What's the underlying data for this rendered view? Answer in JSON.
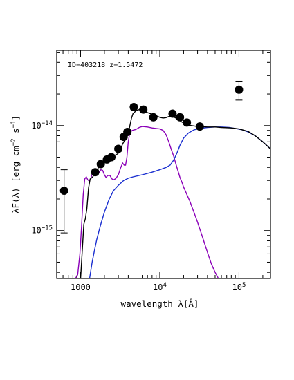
{
  "chart_data": {
    "type": "scatter",
    "annotation": "ID=403218 z=1.5472",
    "xlabel": "wavelength λ[Å]",
    "ylabel": {
      "prefix": "λF(λ) [erg cm",
      "exp1": "−2",
      "mid": " s",
      "exp2": "−1",
      "suffix": "]"
    },
    "x_scale": "log",
    "y_scale": "log",
    "xlim": [
      500,
      250000
    ],
    "ylim": [
      3.5e-16,
      5.2e-14
    ],
    "x_ticks": [
      {
        "value": 1000,
        "base": "1000",
        "exp": ""
      },
      {
        "value": 10000,
        "base": "10",
        "exp": "4"
      },
      {
        "value": 100000,
        "base": "10",
        "exp": "5"
      }
    ],
    "y_ticks": [
      {
        "value": 1e-15,
        "base": "10",
        "exp": "−15"
      },
      {
        "value": 1e-14,
        "base": "10",
        "exp": "−14"
      }
    ],
    "legend": "none",
    "grid": false,
    "colors": {
      "points": "#000000",
      "total": "#000000",
      "stellar": "#8b00b8",
      "dust": "#1a2fd0"
    },
    "points": [
      {
        "x": 620,
        "y": 2.4e-15,
        "ylo": 9.5e-16,
        "yhi": 3.8e-15
      },
      {
        "x": 1530,
        "y": 3.6e-15,
        "ylo": 3.42e-15,
        "yhi": 3.78e-15
      },
      {
        "x": 1800,
        "y": 4.3e-15,
        "ylo": 4.09e-15,
        "yhi": 4.52e-15
      },
      {
        "x": 2150,
        "y": 4.75e-15,
        "ylo": 4.5e-15,
        "yhi": 5e-15
      },
      {
        "x": 2450,
        "y": 5e-15,
        "ylo": 4.75e-15,
        "yhi": 5.25e-15
      },
      {
        "x": 3000,
        "y": 6e-15,
        "ylo": 5.7e-15,
        "yhi": 6.3e-15
      },
      {
        "x": 3500,
        "y": 7.8e-15,
        "ylo": 7.4e-15,
        "yhi": 8.2e-15
      },
      {
        "x": 3900,
        "y": 8.7e-15,
        "ylo": 8.26e-15,
        "yhi": 9.14e-15
      },
      {
        "x": 4700,
        "y": 1.5e-14,
        "ylo": 1.42e-14,
        "yhi": 1.58e-14
      },
      {
        "x": 6200,
        "y": 1.42e-14,
        "ylo": 1.35e-14,
        "yhi": 1.49e-14
      },
      {
        "x": 8300,
        "y": 1.2e-14,
        "ylo": 1.14e-14,
        "yhi": 1.26e-14
      },
      {
        "x": 14500,
        "y": 1.3e-14,
        "ylo": 1.23e-14,
        "yhi": 1.37e-14
      },
      {
        "x": 18000,
        "y": 1.2e-14,
        "ylo": 1.14e-14,
        "yhi": 1.26e-14
      },
      {
        "x": 22000,
        "y": 1.07e-14,
        "ylo": 1.02e-14,
        "yhi": 1.12e-14
      },
      {
        "x": 32000,
        "y": 9.8e-15,
        "ylo": 9.3e-15,
        "yhi": 1.03e-14
      },
      {
        "x": 100000,
        "y": 2.2e-14,
        "ylo": 1.75e-14,
        "yhi": 2.65e-14
      }
    ],
    "series": [
      {
        "role": "total model",
        "color": "#000000",
        "x": [
          1000,
          1100,
          1150,
          1200,
          1260,
          1320,
          1400,
          1550,
          1700,
          1850,
          2000,
          2200,
          2400,
          2600,
          2800,
          3000,
          3200,
          3400,
          3600,
          3800,
          4000,
          4200,
          4400,
          4600,
          5000,
          5500,
          6000,
          7000,
          8000,
          9000,
          10000,
          11000,
          12000,
          13000,
          15000,
          17000,
          19000,
          21000,
          25000,
          30000,
          40000,
          50000,
          60000,
          80000,
          100000,
          130000,
          160000,
          200000,
          250000
        ],
        "y": [
          3.5e-16,
          1.15e-15,
          1.3e-15,
          1.6e-15,
          2.55e-15,
          3.1e-15,
          3.2e-15,
          3.55e-15,
          4.05e-15,
          4.45e-15,
          4.6e-15,
          4.9e-15,
          5.1e-15,
          5.2e-15,
          5.25e-15,
          5.45e-15,
          5.95e-15,
          6.7e-15,
          7.2e-15,
          7.7e-15,
          8.4e-15,
          1e-14,
          1.18e-14,
          1.3e-14,
          1.38e-14,
          1.42e-14,
          1.38e-14,
          1.33e-14,
          1.28e-14,
          1.24e-14,
          1.2e-14,
          1.18e-14,
          1.19e-14,
          1.22e-14,
          1.21e-14,
          1.15e-14,
          1.08e-14,
          1.04e-14,
          1e-14,
          9.8e-15,
          9.7e-15,
          9.7e-15,
          9.6e-15,
          9.5e-15,
          9.3e-15,
          8.8e-15,
          8e-15,
          7e-15,
          6e-15
        ]
      },
      {
        "role": "stellar model",
        "color": "#8b00b8",
        "x": [
          860,
          920,
          980,
          1030,
          1080,
          1130,
          1180,
          1230,
          1290,
          1350,
          1420,
          1500,
          1580,
          1650,
          1730,
          1800,
          1900,
          2000,
          2100,
          2200,
          2350,
          2500,
          2650,
          2800,
          3000,
          3200,
          3400,
          3550,
          3700,
          3850,
          4000,
          4200,
          4500,
          5000,
          5500,
          6000,
          7000,
          8000,
          9000,
          10000,
          11000,
          12000,
          13000,
          14000,
          15000,
          16000,
          17000,
          18000,
          19000,
          20000,
          21000,
          22000,
          24000,
          27000,
          30000,
          35000,
          40000,
          45000,
          50000,
          55000
        ],
        "y": [
          3.5e-16,
          3.8e-16,
          6e-16,
          1.1e-15,
          2.2e-15,
          3.1e-15,
          3.25e-15,
          3.05e-15,
          2.95e-15,
          3.15e-15,
          3.6e-15,
          3.8e-15,
          3.55e-15,
          3.45e-15,
          3.6e-15,
          3.8e-15,
          3.75e-15,
          3.4e-15,
          3.2e-15,
          3.35e-15,
          3.35e-15,
          3.1e-15,
          3.05e-15,
          3.15e-15,
          3.4e-15,
          3.95e-15,
          4.4e-15,
          4.2e-15,
          4.2e-15,
          5e-15,
          7e-15,
          8.6e-15,
          9e-15,
          9.2e-15,
          9.6e-15,
          9.8e-15,
          9.7e-15,
          9.5e-15,
          9.4e-15,
          9.3e-15,
          9e-15,
          8.2e-15,
          7e-15,
          5.9e-15,
          5.1e-15,
          4.3e-15,
          3.7e-15,
          3.2e-15,
          2.9e-15,
          2.6e-15,
          2.4e-15,
          2.2e-15,
          1.9e-15,
          1.5e-15,
          1.2e-15,
          8.5e-16,
          6.2e-16,
          4.8e-16,
          4e-16,
          3.5e-16
        ]
      },
      {
        "role": "dust model",
        "color": "#1a2fd0",
        "x": [
          1300,
          1400,
          1500,
          1600,
          1800,
          2000,
          2300,
          2600,
          3000,
          3500,
          4000,
          4600,
          5500,
          6500,
          8000,
          10000,
          12000,
          13500,
          15000,
          16500,
          18000,
          20000,
          23000,
          27000,
          32000,
          40000,
          50000,
          60000,
          75000,
          90000,
          110000,
          130000,
          160000,
          200000,
          250000
        ],
        "y": [
          3.5e-16,
          5e-16,
          6.5e-16,
          8.2e-16,
          1.15e-15,
          1.5e-15,
          2e-15,
          2.4e-15,
          2.7e-15,
          3e-15,
          3.15e-15,
          3.25e-15,
          3.35e-15,
          3.45e-15,
          3.6e-15,
          3.8e-15,
          4e-15,
          4.2e-15,
          4.7e-15,
          5.5e-15,
          6.5e-15,
          7.6e-15,
          8.5e-15,
          9.1e-15,
          9.4e-15,
          9.6e-15,
          9.7e-15,
          9.7e-15,
          9.6e-15,
          9.4e-15,
          9.1e-15,
          8.7e-15,
          8e-15,
          7e-15,
          6e-15
        ]
      }
    ]
  }
}
